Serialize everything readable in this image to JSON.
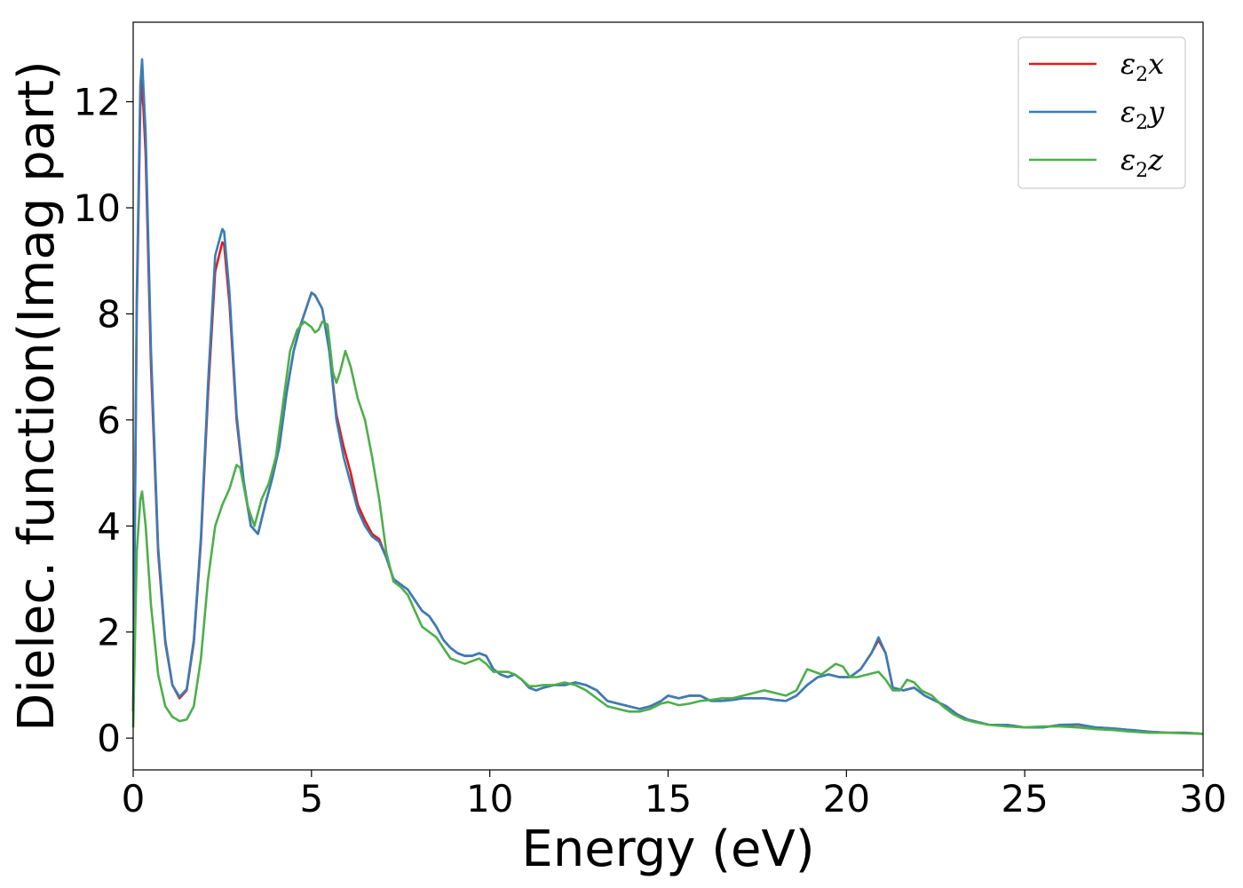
{
  "chart_data": {
    "type": "line",
    "title": "",
    "xlabel": "Energy (eV)",
    "ylabel": "Dielec. function(Imag part)",
    "xlim": [
      0,
      30
    ],
    "ylim": [
      -0.6,
      13.5
    ],
    "xticks": [
      0,
      5,
      10,
      15,
      20,
      25,
      30
    ],
    "yticks": [
      0,
      2,
      4,
      6,
      8,
      10,
      12
    ],
    "grid": false,
    "legend_position": "top-right",
    "series": [
      {
        "name": "ε2x",
        "legend_base": "ε",
        "legend_sub": "2",
        "legend_var": "x",
        "color": "#e41a1c",
        "x": [
          0,
          0.1,
          0.2,
          0.25,
          0.35,
          0.5,
          0.7,
          0.9,
          1.1,
          1.3,
          1.5,
          1.7,
          1.9,
          2.1,
          2.3,
          2.5,
          2.55,
          2.7,
          2.9,
          3.1,
          3.3,
          3.5,
          3.7,
          3.9,
          4.1,
          4.3,
          4.5,
          4.7,
          4.9,
          5.0,
          5.1,
          5.3,
          5.5,
          5.7,
          5.9,
          6.1,
          6.3,
          6.5,
          6.7,
          6.9,
          7.1,
          7.3,
          7.5,
          7.7,
          7.9,
          8.1,
          8.3,
          8.5,
          8.7,
          8.9,
          9.1,
          9.3,
          9.5,
          9.7,
          9.9,
          10.1,
          10.3,
          10.5,
          10.7,
          10.9,
          11.1,
          11.3,
          11.5,
          11.8,
          12.1,
          12.4,
          12.7,
          13.0,
          13.3,
          13.6,
          13.9,
          14.2,
          14.5,
          14.8,
          15.0,
          15.3,
          15.6,
          15.9,
          16.2,
          16.5,
          16.8,
          17.1,
          17.4,
          17.7,
          18.0,
          18.3,
          18.6,
          18.9,
          19.2,
          19.5,
          19.8,
          20.1,
          20.4,
          20.7,
          20.9,
          21.1,
          21.3,
          21.6,
          21.9,
          22.2,
          22.5,
          22.8,
          23.1,
          23.4,
          23.7,
          24.0,
          24.5,
          25.0,
          25.5,
          26.0,
          26.5,
          27.0,
          27.5,
          28.0,
          28.5,
          29.0,
          29.5,
          30.0
        ],
        "y": [
          0.5,
          8.0,
          11.9,
          12.4,
          11.0,
          7.0,
          3.5,
          1.8,
          1.0,
          0.75,
          0.9,
          1.8,
          3.7,
          6.5,
          8.8,
          9.35,
          9.3,
          8.2,
          6.0,
          4.8,
          4.0,
          3.85,
          4.4,
          4.9,
          5.5,
          6.5,
          7.3,
          7.8,
          8.2,
          8.4,
          8.35,
          8.1,
          7.3,
          6.1,
          5.5,
          5.0,
          4.4,
          4.1,
          3.85,
          3.75,
          3.4,
          3.0,
          2.9,
          2.8,
          2.6,
          2.4,
          2.3,
          2.1,
          1.85,
          1.7,
          1.6,
          1.55,
          1.55,
          1.6,
          1.55,
          1.3,
          1.2,
          1.15,
          1.2,
          1.1,
          0.95,
          0.9,
          0.95,
          1.0,
          1.0,
          1.05,
          1.0,
          0.9,
          0.7,
          0.65,
          0.6,
          0.55,
          0.6,
          0.7,
          0.8,
          0.75,
          0.8,
          0.8,
          0.7,
          0.7,
          0.72,
          0.75,
          0.75,
          0.75,
          0.72,
          0.7,
          0.8,
          1.0,
          1.15,
          1.2,
          1.15,
          1.15,
          1.3,
          1.6,
          1.85,
          1.6,
          0.95,
          0.9,
          0.95,
          0.8,
          0.7,
          0.6,
          0.45,
          0.35,
          0.3,
          0.25,
          0.25,
          0.2,
          0.2,
          0.25,
          0.25,
          0.2,
          0.18,
          0.15,
          0.12,
          0.1,
          0.1,
          0.08
        ]
      },
      {
        "name": "ε2y",
        "legend_base": "ε",
        "legend_sub": "2",
        "legend_var": "y",
        "color": "#377eb8",
        "x": [
          0,
          0.1,
          0.2,
          0.25,
          0.35,
          0.5,
          0.7,
          0.9,
          1.1,
          1.3,
          1.5,
          1.7,
          1.9,
          2.1,
          2.3,
          2.5,
          2.55,
          2.7,
          2.9,
          3.1,
          3.3,
          3.5,
          3.7,
          3.9,
          4.1,
          4.3,
          4.5,
          4.7,
          4.9,
          5.0,
          5.1,
          5.3,
          5.5,
          5.7,
          5.9,
          6.1,
          6.3,
          6.5,
          6.7,
          6.9,
          7.1,
          7.3,
          7.5,
          7.7,
          7.9,
          8.1,
          8.3,
          8.5,
          8.7,
          8.9,
          9.1,
          9.3,
          9.5,
          9.7,
          9.9,
          10.1,
          10.3,
          10.5,
          10.7,
          10.9,
          11.1,
          11.3,
          11.5,
          11.8,
          12.1,
          12.4,
          12.7,
          13.0,
          13.3,
          13.6,
          13.9,
          14.2,
          14.5,
          14.8,
          15.0,
          15.3,
          15.6,
          15.9,
          16.2,
          16.5,
          16.8,
          17.1,
          17.4,
          17.7,
          18.0,
          18.3,
          18.6,
          18.9,
          19.2,
          19.5,
          19.8,
          20.1,
          20.4,
          20.7,
          20.9,
          21.1,
          21.3,
          21.6,
          21.9,
          22.2,
          22.5,
          22.8,
          23.1,
          23.4,
          23.7,
          24.0,
          24.5,
          25.0,
          25.5,
          26.0,
          26.5,
          27.0,
          27.5,
          28.0,
          28.5,
          29.0,
          29.5,
          30.0
        ],
        "y": [
          0.5,
          8.3,
          12.3,
          12.8,
          11.4,
          7.3,
          3.6,
          1.85,
          1.0,
          0.78,
          0.92,
          1.85,
          3.8,
          6.7,
          9.1,
          9.6,
          9.55,
          8.4,
          6.1,
          4.85,
          4.0,
          3.85,
          4.4,
          4.9,
          5.5,
          6.5,
          7.3,
          7.8,
          8.2,
          8.4,
          8.35,
          8.1,
          7.3,
          6.0,
          5.3,
          4.8,
          4.3,
          4.0,
          3.8,
          3.7,
          3.4,
          3.0,
          2.9,
          2.8,
          2.6,
          2.4,
          2.3,
          2.1,
          1.85,
          1.7,
          1.6,
          1.55,
          1.55,
          1.6,
          1.55,
          1.3,
          1.2,
          1.15,
          1.2,
          1.1,
          0.95,
          0.9,
          0.95,
          1.0,
          1.0,
          1.05,
          1.0,
          0.9,
          0.7,
          0.65,
          0.6,
          0.55,
          0.6,
          0.7,
          0.8,
          0.75,
          0.8,
          0.8,
          0.7,
          0.7,
          0.72,
          0.75,
          0.75,
          0.75,
          0.72,
          0.7,
          0.8,
          1.0,
          1.15,
          1.2,
          1.15,
          1.15,
          1.3,
          1.6,
          1.9,
          1.6,
          0.95,
          0.9,
          0.95,
          0.8,
          0.7,
          0.6,
          0.45,
          0.35,
          0.3,
          0.25,
          0.25,
          0.2,
          0.2,
          0.25,
          0.26,
          0.2,
          0.18,
          0.15,
          0.12,
          0.1,
          0.1,
          0.08
        ]
      },
      {
        "name": "ε2z",
        "legend_base": "ε",
        "legend_sub": "2",
        "legend_var": "z",
        "color": "#4daf4a",
        "x": [
          0,
          0.1,
          0.2,
          0.25,
          0.35,
          0.5,
          0.7,
          0.9,
          1.1,
          1.3,
          1.5,
          1.7,
          1.9,
          2.1,
          2.3,
          2.5,
          2.7,
          2.9,
          3.0,
          3.2,
          3.4,
          3.6,
          3.8,
          4.0,
          4.2,
          4.4,
          4.6,
          4.8,
          5.0,
          5.1,
          5.2,
          5.3,
          5.45,
          5.6,
          5.7,
          5.8,
          5.95,
          6.1,
          6.3,
          6.5,
          6.7,
          6.9,
          7.1,
          7.3,
          7.5,
          7.7,
          7.9,
          8.1,
          8.3,
          8.5,
          8.7,
          8.9,
          9.1,
          9.3,
          9.5,
          9.7,
          9.9,
          10.1,
          10.3,
          10.5,
          10.7,
          10.9,
          11.1,
          11.3,
          11.5,
          11.8,
          12.1,
          12.4,
          12.7,
          13.0,
          13.3,
          13.6,
          13.9,
          14.2,
          14.5,
          14.8,
          15.0,
          15.3,
          15.6,
          15.9,
          16.2,
          16.5,
          16.8,
          17.1,
          17.4,
          17.7,
          18.0,
          18.3,
          18.6,
          18.9,
          19.1,
          19.3,
          19.5,
          19.7,
          19.9,
          20.1,
          20.3,
          20.6,
          20.9,
          21.1,
          21.3,
          21.5,
          21.7,
          21.9,
          22.1,
          22.4,
          22.7,
          23.0,
          23.3,
          23.6,
          24.0,
          24.5,
          25.0,
          25.5,
          26.0,
          26.5,
          27.0,
          27.5,
          28.0,
          28.5,
          29.0,
          29.5,
          30.0
        ],
        "y": [
          0.2,
          3.5,
          4.5,
          4.65,
          4.0,
          2.5,
          1.2,
          0.6,
          0.4,
          0.32,
          0.35,
          0.6,
          1.5,
          3.0,
          4.0,
          4.4,
          4.7,
          5.15,
          5.1,
          4.4,
          4.0,
          4.5,
          4.8,
          5.3,
          6.3,
          7.3,
          7.7,
          7.85,
          7.75,
          7.65,
          7.7,
          7.85,
          7.8,
          6.9,
          6.7,
          6.9,
          7.3,
          7.0,
          6.4,
          6.0,
          5.3,
          4.5,
          3.5,
          2.95,
          2.85,
          2.7,
          2.4,
          2.1,
          2.0,
          1.9,
          1.7,
          1.5,
          1.45,
          1.4,
          1.45,
          1.5,
          1.4,
          1.25,
          1.25,
          1.25,
          1.2,
          1.1,
          0.98,
          0.98,
          1.0,
          1.0,
          1.05,
          1.0,
          0.9,
          0.75,
          0.6,
          0.55,
          0.5,
          0.5,
          0.55,
          0.65,
          0.68,
          0.62,
          0.65,
          0.7,
          0.72,
          0.75,
          0.75,
          0.8,
          0.85,
          0.9,
          0.85,
          0.8,
          0.9,
          1.3,
          1.25,
          1.2,
          1.3,
          1.4,
          1.35,
          1.15,
          1.15,
          1.2,
          1.25,
          1.1,
          0.9,
          0.9,
          1.1,
          1.05,
          0.9,
          0.8,
          0.6,
          0.45,
          0.35,
          0.3,
          0.25,
          0.22,
          0.2,
          0.22,
          0.22,
          0.2,
          0.17,
          0.15,
          0.12,
          0.1,
          0.1,
          0.09,
          0.08
        ]
      }
    ]
  }
}
